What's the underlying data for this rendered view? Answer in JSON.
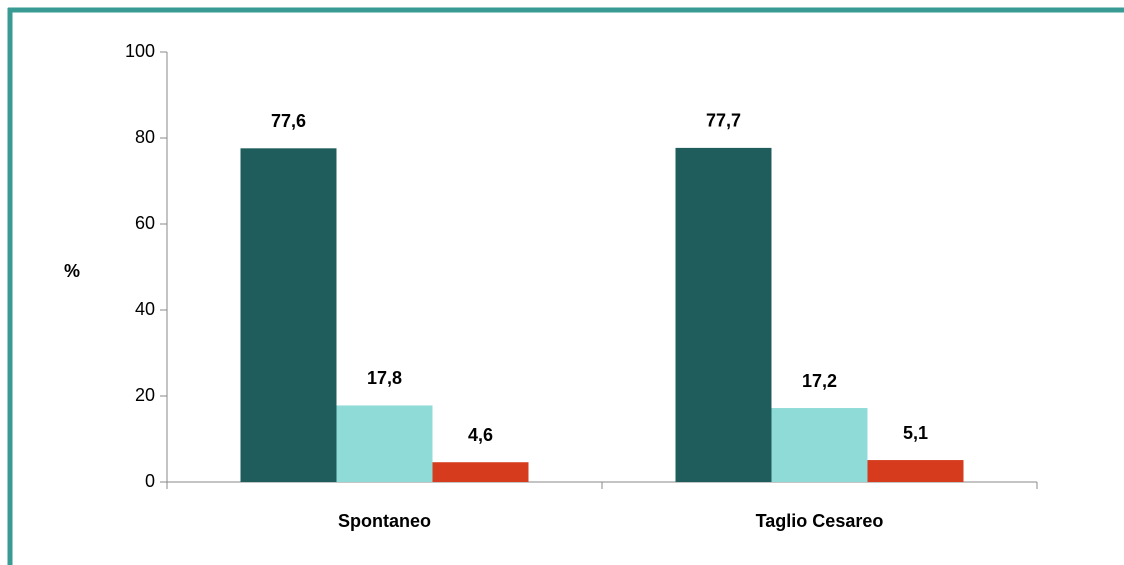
{
  "chart_data": {
    "type": "bar",
    "y_label": "%",
    "categories": [
      "Spontaneo",
      "Taglio Cesareo"
    ],
    "series": [
      {
        "color": "#1f5c5c",
        "values": [
          77.6,
          77.7
        ],
        "value_labels": [
          "77,6",
          "77,7"
        ]
      },
      {
        "color": "#8fdbd8",
        "values": [
          17.8,
          17.2
        ],
        "value_labels": [
          "17,8",
          "17,2"
        ]
      },
      {
        "color": "#d63b1e",
        "values": [
          4.6,
          5.1
        ],
        "value_labels": [
          "4,6",
          "5,1"
        ]
      }
    ],
    "ylim": [
      0,
      100
    ],
    "yticks": [
      0,
      20,
      40,
      60,
      80,
      100
    ],
    "grid": false
  }
}
